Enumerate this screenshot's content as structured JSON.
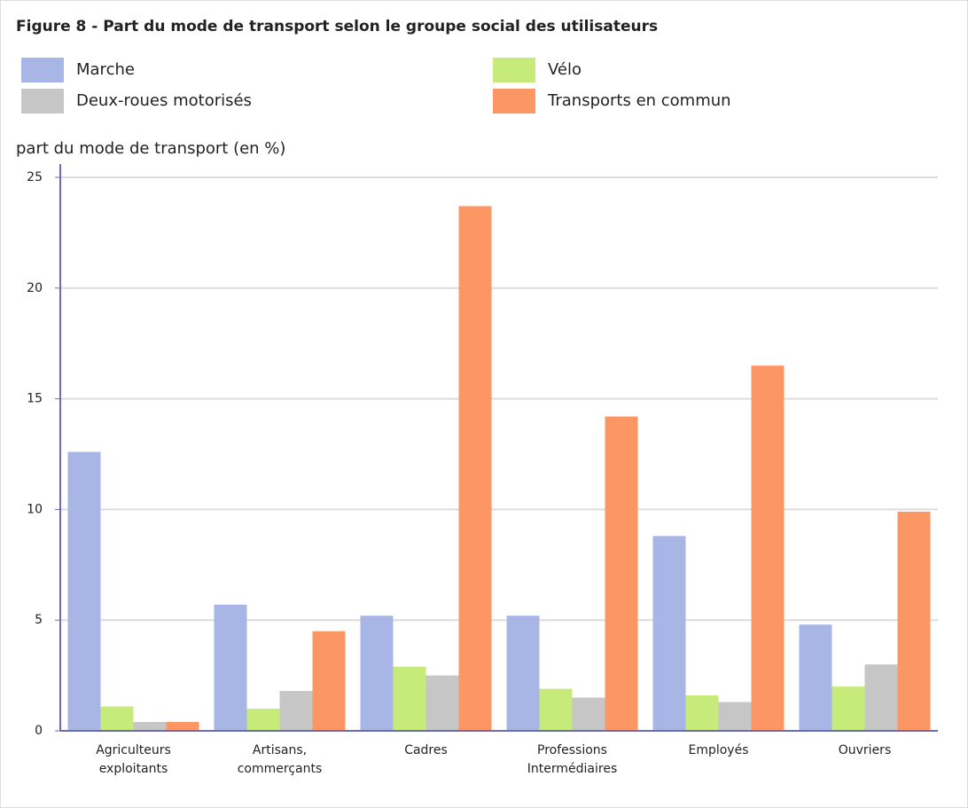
{
  "chart_data": {
    "type": "bar",
    "title": "Figure 8 - Part du mode de transport selon le groupe social des utilisateurs",
    "ylabel": "part du mode de transport (en %)",
    "categories": [
      [
        "Agriculteurs",
        "exploitants"
      ],
      [
        "Artisans,",
        "commerçants"
      ],
      [
        "Cadres"
      ],
      [
        "Professions",
        "Intermédiaires"
      ],
      [
        "Employés"
      ],
      [
        "Ouvriers"
      ]
    ],
    "series": [
      {
        "name": "Marche",
        "color": "#a7b6e4",
        "values": [
          12.6,
          5.7,
          5.2,
          5.2,
          8.8,
          4.8
        ]
      },
      {
        "name": "Vélo",
        "color": "#c6eb7b",
        "values": [
          1.1,
          1.0,
          2.9,
          1.9,
          1.6,
          2.0
        ]
      },
      {
        "name": "Deux-roues motorisés",
        "color": "#c6c6c6",
        "values": [
          0.4,
          1.8,
          2.5,
          1.5,
          1.3,
          3.0
        ]
      },
      {
        "name": "Transports en commun",
        "color": "#fc9665",
        "values": [
          0.4,
          4.5,
          23.7,
          14.2,
          16.5,
          9.9
        ]
      }
    ],
    "ylim": [
      0,
      25
    ],
    "yticks": [
      0,
      5,
      10,
      15,
      20,
      25
    ],
    "grid": true
  }
}
